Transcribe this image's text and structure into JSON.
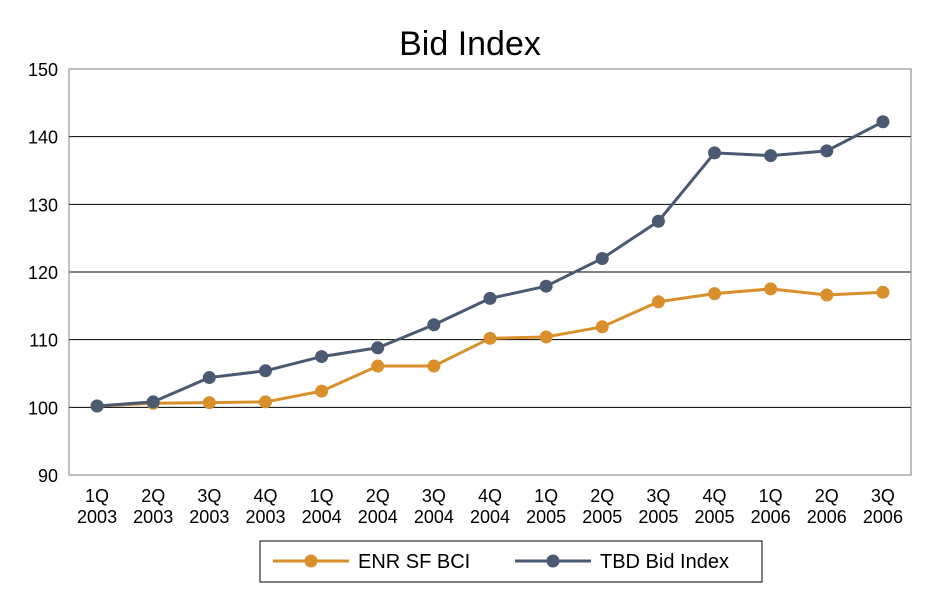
{
  "chart_data": {
    "type": "line",
    "title": "Bid Index",
    "xlabel": "",
    "ylabel": "",
    "categories": [
      [
        "1Q",
        "2003"
      ],
      [
        "2Q",
        "2003"
      ],
      [
        "3Q",
        "2003"
      ],
      [
        "4Q",
        "2003"
      ],
      [
        "1Q",
        "2004"
      ],
      [
        "2Q",
        "2004"
      ],
      [
        "3Q",
        "2004"
      ],
      [
        "4Q",
        "2004"
      ],
      [
        "1Q",
        "2005"
      ],
      [
        "2Q",
        "2005"
      ],
      [
        "3Q",
        "2005"
      ],
      [
        "4Q",
        "2005"
      ],
      [
        "1Q",
        "2006"
      ],
      [
        "2Q",
        "2006"
      ],
      [
        "3Q",
        "2006"
      ]
    ],
    "ylim": [
      90,
      150
    ],
    "yticks": [
      90,
      100,
      110,
      120,
      130,
      140,
      150
    ],
    "grid": true,
    "legend_position": "bottom",
    "series": [
      {
        "name": "ENR SF BCI",
        "color": "#d98f2b",
        "values": [
          100.2,
          100.6,
          100.7,
          100.8,
          102.4,
          106.1,
          106.1,
          110.2,
          110.4,
          111.9,
          115.6,
          116.8,
          117.5,
          116.6,
          117.0
        ]
      },
      {
        "name": "TBD Bid Index",
        "color": "#4a5a73",
        "values": [
          100.2,
          100.8,
          104.4,
          105.4,
          107.5,
          108.8,
          112.2,
          116.1,
          117.9,
          122.0,
          127.5,
          137.6,
          137.2,
          137.9,
          142.2
        ]
      }
    ]
  }
}
